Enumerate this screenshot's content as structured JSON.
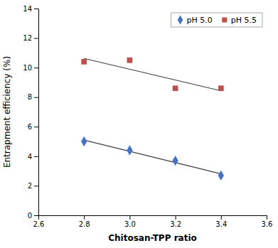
{
  "chart_data": {
    "type": "scatter",
    "xlabel": "Chitosan-TPP ratio",
    "ylabel": "Entrapment efficiency (%)",
    "xlim": [
      2.6,
      3.6
    ],
    "ylim": [
      0,
      14
    ],
    "xticks": [
      2.6,
      2.8,
      {
        "value": 3.0,
        "label": "3.0"
      },
      3.2,
      3.4,
      3.6
    ],
    "yticks": [
      0,
      2,
      4,
      6,
      8,
      10,
      12,
      14
    ],
    "grid": false,
    "legend": "upper right",
    "series": [
      {
        "type": "line",
        "line_style": "solid",
        "color": "#404040",
        "x": [
          2.8,
          3.4
        ],
        "values": [
          5.09,
          2.81
        ]
      },
      {
        "type": "line",
        "line_style": "solid",
        "color": "#404040",
        "x": [
          2.8,
          3.4
        ],
        "values": [
          10.62,
          8.43
        ]
      },
      {
        "name": "pH 5.0",
        "type": "scatter",
        "marker": "diamond",
        "color": "#4472c4",
        "x": [
          2.8,
          3.0,
          3.2,
          3.4
        ],
        "values": [
          5.0,
          4.4,
          3.7,
          2.7
        ]
      },
      {
        "name": "pH 5.5",
        "type": "scatter",
        "marker": "square",
        "color": "#c0504d",
        "x": [
          2.8,
          3.0,
          3.2,
          3.4
        ],
        "values": [
          10.4,
          10.5,
          8.6,
          8.6
        ]
      }
    ]
  }
}
